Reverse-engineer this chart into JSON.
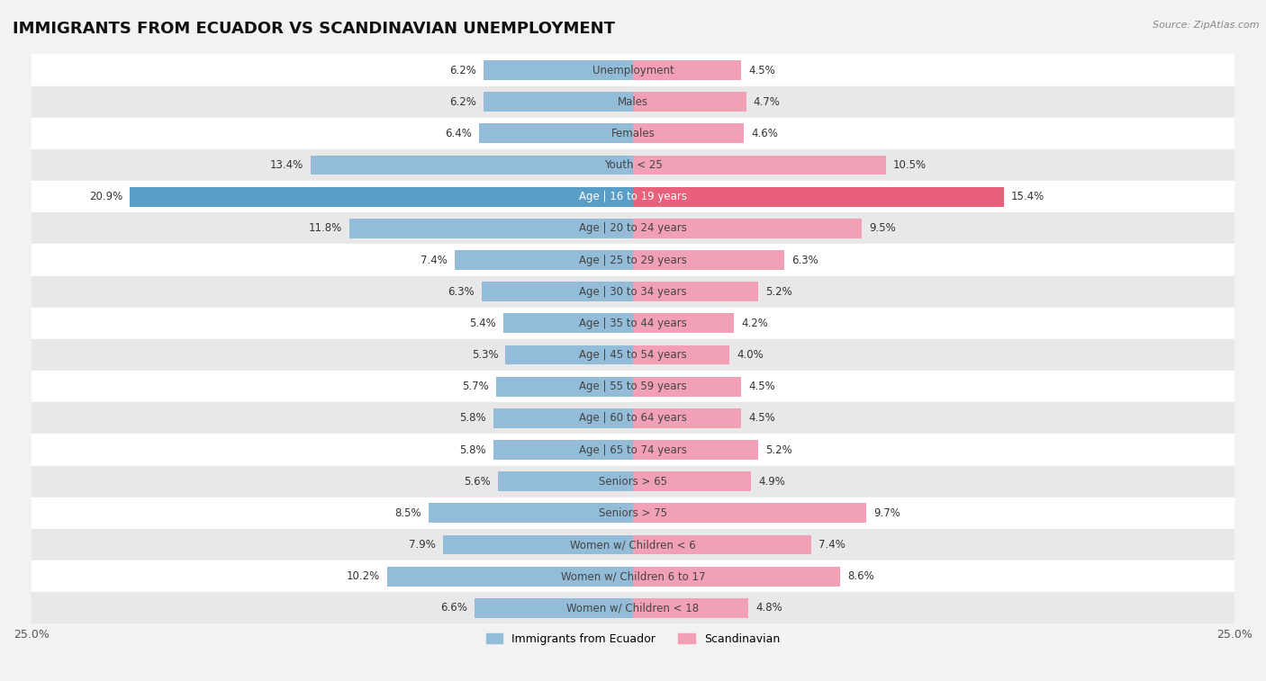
{
  "title": "IMMIGRANTS FROM ECUADOR VS SCANDINAVIAN UNEMPLOYMENT",
  "source": "Source: ZipAtlas.com",
  "categories": [
    "Unemployment",
    "Males",
    "Females",
    "Youth < 25",
    "Age | 16 to 19 years",
    "Age | 20 to 24 years",
    "Age | 25 to 29 years",
    "Age | 30 to 34 years",
    "Age | 35 to 44 years",
    "Age | 45 to 54 years",
    "Age | 55 to 59 years",
    "Age | 60 to 64 years",
    "Age | 65 to 74 years",
    "Seniors > 65",
    "Seniors > 75",
    "Women w/ Children < 6",
    "Women w/ Children 6 to 17",
    "Women w/ Children < 18"
  ],
  "ecuador_values": [
    6.2,
    6.2,
    6.4,
    13.4,
    20.9,
    11.8,
    7.4,
    6.3,
    5.4,
    5.3,
    5.7,
    5.8,
    5.8,
    5.6,
    8.5,
    7.9,
    10.2,
    6.6
  ],
  "scandinavian_values": [
    4.5,
    4.7,
    4.6,
    10.5,
    15.4,
    9.5,
    6.3,
    5.2,
    4.2,
    4.0,
    4.5,
    4.5,
    5.2,
    4.9,
    9.7,
    7.4,
    8.6,
    4.8
  ],
  "ecuador_color": "#92bcd8",
  "scandinavian_color": "#f2a0b5",
  "ecuador_highlight_color": "#5a9ec8",
  "scandinavian_highlight_color": "#e8607a",
  "highlight_row": 4,
  "bar_height": 0.62,
  "bg_color": "#f2f2f2",
  "row_even_color": "#ffffff",
  "row_odd_color": "#e8e8e8",
  "title_fontsize": 13,
  "label_fontsize": 8.5,
  "value_fontsize": 8.5
}
